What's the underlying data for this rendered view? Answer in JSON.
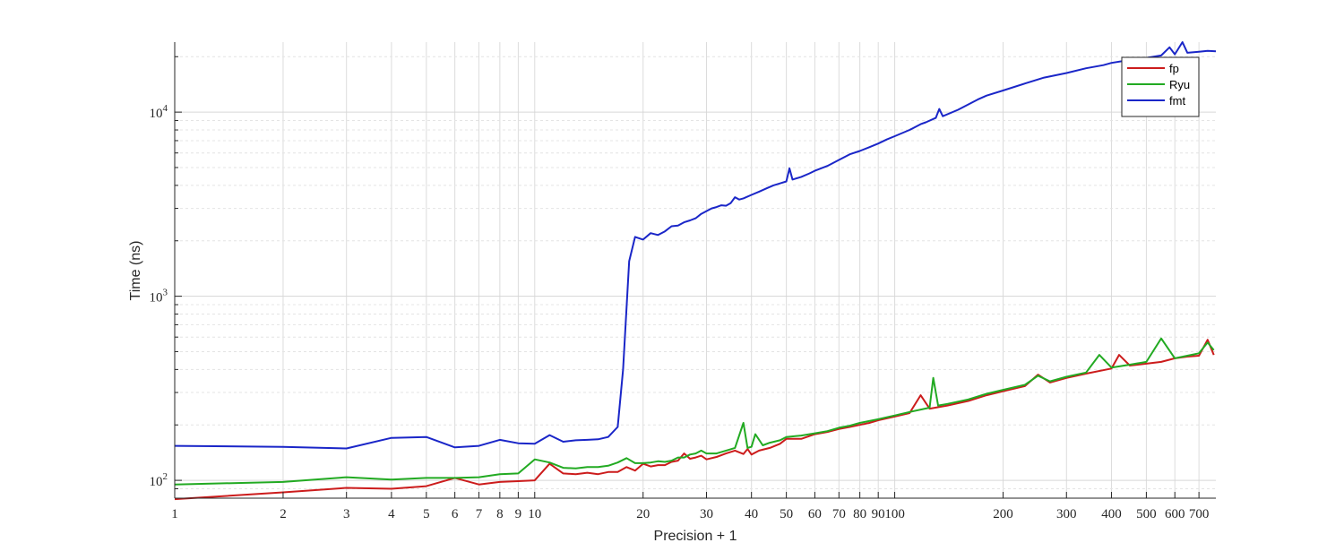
{
  "chart_data": {
    "type": "line",
    "title": "",
    "xlabel": "Precision + 1",
    "ylabel": "Time (ns)",
    "xscale": "log",
    "yscale": "log",
    "xlim": [
      1,
      780
    ],
    "ylim": [
      80,
      24000
    ],
    "grid": true,
    "minor_grid": true,
    "legend_position": "top-right",
    "x_ticks": [
      1,
      2,
      3,
      4,
      5,
      6,
      7,
      8,
      9,
      10,
      20,
      30,
      40,
      50,
      60,
      70,
      80,
      90,
      100,
      200,
      300,
      400,
      500,
      600,
      700
    ],
    "x_tick_labels": [
      "1",
      "2",
      "3",
      "4",
      "5",
      "6",
      "7",
      "8",
      "9",
      "10",
      "20",
      "30",
      "40",
      "50",
      "60",
      "70",
      "80",
      "90",
      "100",
      "200",
      "300",
      "400",
      "500",
      "600",
      "700"
    ],
    "y_ticks": [
      100,
      1000,
      10000
    ],
    "y_tick_labels": [
      {
        "base": "10",
        "exp": "2"
      },
      {
        "base": "10",
        "exp": "3"
      },
      {
        "base": "10",
        "exp": "4"
      }
    ],
    "series": [
      {
        "name": "fp",
        "color": "#cc1c1c",
        "points": [
          [
            1,
            79
          ],
          [
            2,
            86
          ],
          [
            3,
            91
          ],
          [
            4,
            90
          ],
          [
            5,
            93
          ],
          [
            6,
            103
          ],
          [
            7,
            95
          ],
          [
            8,
            98
          ],
          [
            9,
            99
          ],
          [
            10,
            100
          ],
          [
            11,
            123
          ],
          [
            12,
            109
          ],
          [
            13,
            108
          ],
          [
            14,
            110
          ],
          [
            15,
            108
          ],
          [
            16,
            111
          ],
          [
            17,
            111
          ],
          [
            18,
            118
          ],
          [
            19,
            113
          ],
          [
            20,
            123
          ],
          [
            21,
            119
          ],
          [
            22,
            121
          ],
          [
            23,
            121
          ],
          [
            24,
            126
          ],
          [
            25,
            128
          ],
          [
            26,
            140
          ],
          [
            27,
            131
          ],
          [
            28,
            133
          ],
          [
            29,
            136
          ],
          [
            30,
            130
          ],
          [
            32,
            134
          ],
          [
            34,
            140
          ],
          [
            36,
            145
          ],
          [
            38,
            139
          ],
          [
            39,
            148
          ],
          [
            40,
            138
          ],
          [
            42,
            145
          ],
          [
            45,
            150
          ],
          [
            48,
            158
          ],
          [
            50,
            168
          ],
          [
            55,
            168
          ],
          [
            60,
            178
          ],
          [
            65,
            183
          ],
          [
            70,
            190
          ],
          [
            75,
            195
          ],
          [
            80,
            200
          ],
          [
            85,
            205
          ],
          [
            90,
            212
          ],
          [
            100,
            222
          ],
          [
            110,
            232
          ],
          [
            118,
            290
          ],
          [
            125,
            245
          ],
          [
            140,
            255
          ],
          [
            160,
            270
          ],
          [
            180,
            290
          ],
          [
            200,
            305
          ],
          [
            230,
            325
          ],
          [
            250,
            375
          ],
          [
            270,
            340
          ],
          [
            300,
            360
          ],
          [
            340,
            380
          ],
          [
            400,
            405
          ],
          [
            420,
            480
          ],
          [
            450,
            420
          ],
          [
            500,
            430
          ],
          [
            550,
            440
          ],
          [
            600,
            460
          ],
          [
            650,
            470
          ],
          [
            700,
            475
          ],
          [
            740,
            580
          ],
          [
            770,
            480
          ]
        ]
      },
      {
        "name": "Ryu",
        "color": "#22aa22",
        "points": [
          [
            1,
            95
          ],
          [
            2,
            98
          ],
          [
            3,
            104
          ],
          [
            4,
            101
          ],
          [
            5,
            103
          ],
          [
            6,
            103
          ],
          [
            7,
            104
          ],
          [
            8,
            108
          ],
          [
            9,
            109
          ],
          [
            10,
            130
          ],
          [
            11,
            125
          ],
          [
            12,
            117
          ],
          [
            13,
            116
          ],
          [
            14,
            118
          ],
          [
            15,
            118
          ],
          [
            16,
            120
          ],
          [
            17,
            125
          ],
          [
            18,
            132
          ],
          [
            19,
            124
          ],
          [
            20,
            124
          ],
          [
            21,
            125
          ],
          [
            22,
            127
          ],
          [
            23,
            126
          ],
          [
            24,
            128
          ],
          [
            25,
            133
          ],
          [
            26,
            133
          ],
          [
            27,
            138
          ],
          [
            28,
            140
          ],
          [
            29,
            145
          ],
          [
            30,
            140
          ],
          [
            32,
            140
          ],
          [
            34,
            145
          ],
          [
            36,
            150
          ],
          [
            38,
            205
          ],
          [
            39,
            150
          ],
          [
            40,
            152
          ],
          [
            41,
            178
          ],
          [
            43,
            155
          ],
          [
            45,
            160
          ],
          [
            48,
            165
          ],
          [
            50,
            172
          ],
          [
            55,
            175
          ],
          [
            60,
            180
          ],
          [
            65,
            185
          ],
          [
            70,
            193
          ],
          [
            75,
            198
          ],
          [
            80,
            205
          ],
          [
            85,
            210
          ],
          [
            90,
            215
          ],
          [
            100,
            225
          ],
          [
            110,
            235
          ],
          [
            125,
            248
          ],
          [
            128,
            360
          ],
          [
            132,
            255
          ],
          [
            140,
            260
          ],
          [
            160,
            275
          ],
          [
            180,
            295
          ],
          [
            200,
            310
          ],
          [
            230,
            330
          ],
          [
            250,
            370
          ],
          [
            270,
            345
          ],
          [
            300,
            365
          ],
          [
            340,
            385
          ],
          [
            370,
            480
          ],
          [
            400,
            410
          ],
          [
            450,
            425
          ],
          [
            500,
            440
          ],
          [
            550,
            590
          ],
          [
            600,
            460
          ],
          [
            650,
            475
          ],
          [
            700,
            490
          ],
          [
            740,
            560
          ],
          [
            770,
            510
          ]
        ]
      },
      {
        "name": "fmt",
        "color": "#1a26c8",
        "points": [
          [
            1,
            154
          ],
          [
            2,
            152
          ],
          [
            3,
            149
          ],
          [
            4,
            170
          ],
          [
            5,
            172
          ],
          [
            6,
            151
          ],
          [
            7,
            154
          ],
          [
            8,
            166
          ],
          [
            9,
            159
          ],
          [
            10,
            158
          ],
          [
            11,
            176
          ],
          [
            12,
            162
          ],
          [
            13,
            165
          ],
          [
            14,
            166
          ],
          [
            15,
            167
          ],
          [
            16,
            172
          ],
          [
            17,
            195
          ],
          [
            17.6,
            400
          ],
          [
            18.3,
            1550
          ],
          [
            19,
            2100
          ],
          [
            20,
            2030
          ],
          [
            21,
            2200
          ],
          [
            22,
            2150
          ],
          [
            23,
            2250
          ],
          [
            24,
            2400
          ],
          [
            25,
            2420
          ],
          [
            26,
            2520
          ],
          [
            27,
            2580
          ],
          [
            28,
            2650
          ],
          [
            29,
            2800
          ],
          [
            30,
            2900
          ],
          [
            31,
            3000
          ],
          [
            32,
            3050
          ],
          [
            33,
            3120
          ],
          [
            34,
            3100
          ],
          [
            35,
            3200
          ],
          [
            36,
            3450
          ],
          [
            37,
            3350
          ],
          [
            38,
            3400
          ],
          [
            40,
            3550
          ],
          [
            42,
            3700
          ],
          [
            44,
            3850
          ],
          [
            46,
            4000
          ],
          [
            48,
            4100
          ],
          [
            50,
            4200
          ],
          [
            51,
            4950
          ],
          [
            52,
            4300
          ],
          [
            55,
            4450
          ],
          [
            58,
            4650
          ],
          [
            60,
            4800
          ],
          [
            65,
            5100
          ],
          [
            70,
            5500
          ],
          [
            75,
            5900
          ],
          [
            80,
            6150
          ],
          [
            85,
            6450
          ],
          [
            90,
            6750
          ],
          [
            95,
            7100
          ],
          [
            100,
            7400
          ],
          [
            110,
            8000
          ],
          [
            118,
            8600
          ],
          [
            122,
            8800
          ],
          [
            130,
            9300
          ],
          [
            133,
            10400
          ],
          [
            136,
            9500
          ],
          [
            150,
            10300
          ],
          [
            160,
            11000
          ],
          [
            170,
            11700
          ],
          [
            180,
            12300
          ],
          [
            200,
            13100
          ],
          [
            230,
            14300
          ],
          [
            260,
            15400
          ],
          [
            300,
            16300
          ],
          [
            340,
            17300
          ],
          [
            380,
            18000
          ],
          [
            400,
            18500
          ],
          [
            450,
            19200
          ],
          [
            500,
            19700
          ],
          [
            550,
            20300
          ],
          [
            580,
            22500
          ],
          [
            600,
            20600
          ],
          [
            630,
            24000
          ],
          [
            650,
            21000
          ],
          [
            700,
            21300
          ],
          [
            740,
            21500
          ],
          [
            780,
            21400
          ]
        ]
      }
    ]
  }
}
